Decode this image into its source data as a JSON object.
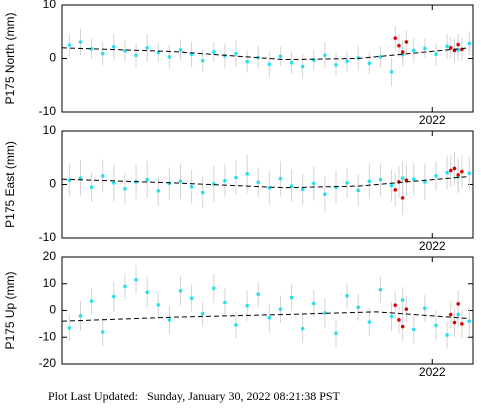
{
  "chart_data": [
    {
      "type": "scatter",
      "ylabel": "P175 North (mm)",
      "xlim": [
        2021.0,
        2022.11
      ],
      "xticks": [
        2022
      ],
      "ylim": [
        -10,
        10
      ],
      "yticks": [
        -10,
        0,
        10
      ],
      "series": [
        {
          "color": "#22e0ee",
          "x": [
            2021.02,
            2021.05,
            2021.08,
            2021.11,
            2021.14,
            2021.17,
            2021.2,
            2021.23,
            2021.26,
            2021.29,
            2021.32,
            2021.35,
            2021.38,
            2021.41,
            2021.44,
            2021.47,
            2021.5,
            2021.53,
            2021.56,
            2021.59,
            2021.62,
            2021.65,
            2021.68,
            2021.71,
            2021.74,
            2021.77,
            2021.8,
            2021.83,
            2021.86,
            2021.89,
            2021.92,
            2021.95,
            2021.98,
            2022.01,
            2022.04,
            2022.07,
            2022.1
          ],
          "values": [
            2.5,
            3.1,
            1.8,
            0.9,
            2.2,
            1.4,
            0.6,
            2.0,
            1.1,
            0.3,
            1.6,
            0.8,
            -0.4,
            1.2,
            0.5,
            0.9,
            -0.6,
            0.2,
            -1.1,
            0.4,
            -0.8,
            -1.5,
            -0.3,
            0.6,
            -1.2,
            -0.5,
            0.1,
            -0.9,
            0.3,
            -2.5,
            0.7,
            1.5,
            1.9,
            0.8,
            2.3,
            1.6,
            2.8
          ],
          "errors": [
            2.2,
            2.5,
            1.9,
            2.1,
            2.4,
            2.0,
            2.3,
            2.6,
            1.8,
            2.2,
            2.0,
            2.4,
            2.1,
            1.9,
            2.3,
            2.5,
            2.0,
            2.2,
            2.4,
            1.8,
            2.1,
            2.3,
            2.0,
            2.5,
            2.2,
            1.9,
            2.4,
            2.1,
            2.0,
            2.6,
            2.2,
            2.3,
            1.9,
            2.1,
            2.4,
            2.0,
            2.2
          ]
        },
        {
          "color": "#e00000",
          "x": [
            2021.9,
            2021.91,
            2021.92,
            2021.93,
            2022.05,
            2022.06,
            2022.07,
            2022.08
          ],
          "values": [
            3.8,
            2.4,
            1.2,
            3.1,
            2.0,
            1.5,
            2.6,
            1.7
          ],
          "errors": [
            2.3,
            2.1,
            2.4,
            2.2,
            2.0,
            2.3,
            2.1,
            2.2
          ]
        },
        {
          "color": "#000000",
          "mode": "dashed-line",
          "x": [
            2021.0,
            2021.3,
            2021.6,
            2021.8,
            2022.1
          ],
          "values": [
            2,
            1.3,
            -0.2,
            0,
            2
          ]
        }
      ]
    },
    {
      "type": "scatter",
      "ylabel": "P175 East (mm)",
      "xlim": [
        2021.0,
        2022.11
      ],
      "xticks": [
        2022
      ],
      "ylim": [
        -10,
        10
      ],
      "yticks": [
        -10,
        0,
        10
      ],
      "series": [
        {
          "color": "#22e0ee",
          "x": [
            2021.02,
            2021.05,
            2021.08,
            2021.11,
            2021.14,
            2021.17,
            2021.2,
            2021.23,
            2021.26,
            2021.29,
            2021.32,
            2021.35,
            2021.38,
            2021.41,
            2021.44,
            2021.47,
            2021.5,
            2021.53,
            2021.56,
            2021.59,
            2021.62,
            2021.65,
            2021.68,
            2021.71,
            2021.74,
            2021.77,
            2021.8,
            2021.83,
            2021.86,
            2021.89,
            2021.92,
            2021.95,
            2021.98,
            2022.01,
            2022.04,
            2022.07,
            2022.1
          ],
          "values": [
            0.8,
            1.2,
            -0.5,
            1.6,
            0.3,
            -0.8,
            0.5,
            0.9,
            -1.2,
            0.2,
            0.6,
            -0.4,
            -1.5,
            0.1,
            0.7,
            1.3,
            2.0,
            0.4,
            -0.6,
            1.1,
            -0.3,
            -0.9,
            0.2,
            -1.8,
            -0.5,
            0.3,
            -1.1,
            0.6,
            0.9,
            -0.2,
            1.2,
            1.0,
            0.5,
            1.6,
            2.2,
            1.4,
            2.1
          ],
          "errors": [
            3.0,
            3.3,
            2.8,
            3.1,
            3.4,
            2.9,
            3.2,
            3.5,
            2.7,
            3.0,
            3.3,
            3.1,
            2.9,
            3.4,
            3.0,
            3.2,
            3.6,
            2.8,
            3.1,
            3.3,
            3.0,
            2.9,
            3.2,
            3.4,
            3.1,
            2.8,
            3.0,
            3.3,
            3.1,
            2.9,
            3.2,
            3.0,
            3.4,
            2.8,
            3.1,
            3.0,
            3.2
          ]
        },
        {
          "color": "#e00000",
          "x": [
            2021.9,
            2021.91,
            2021.92,
            2021.93,
            2022.05,
            2022.06,
            2022.07,
            2022.08
          ],
          "values": [
            -1.0,
            0.5,
            -2.5,
            0.8,
            2.6,
            3.0,
            1.8,
            2.4
          ],
          "errors": [
            3.1,
            3.0,
            3.2,
            2.9,
            3.0,
            3.1,
            3.2,
            3.0
          ]
        },
        {
          "color": "#000000",
          "mode": "dashed-line",
          "x": [
            2021.0,
            2021.3,
            2021.6,
            2021.8,
            2022.1
          ],
          "values": [
            1,
            0.3,
            -0.6,
            -0.3,
            1.5
          ]
        }
      ]
    },
    {
      "type": "scatter",
      "ylabel": "P175 Up (mm)",
      "xlim": [
        2021.0,
        2022.11
      ],
      "xticks": [
        2022
      ],
      "ylim": [
        -20,
        20
      ],
      "yticks": [
        -20,
        -10,
        0,
        10,
        20
      ],
      "series": [
        {
          "color": "#22e0ee",
          "x": [
            2021.02,
            2021.05,
            2021.08,
            2021.11,
            2021.14,
            2021.17,
            2021.2,
            2021.23,
            2021.26,
            2021.29,
            2021.32,
            2021.35,
            2021.38,
            2021.41,
            2021.44,
            2021.47,
            2021.5,
            2021.53,
            2021.56,
            2021.59,
            2021.62,
            2021.65,
            2021.68,
            2021.71,
            2021.74,
            2021.77,
            2021.8,
            2021.83,
            2021.86,
            2021.89,
            2021.92,
            2021.95,
            2021.98,
            2022.01,
            2022.04,
            2022.07,
            2022.1
          ],
          "values": [
            -6.5,
            -2.0,
            3.5,
            -8.0,
            5.2,
            9.0,
            11.5,
            6.8,
            2.1,
            -3.5,
            7.4,
            4.6,
            -1.2,
            8.3,
            3.0,
            -5.4,
            1.8,
            6.1,
            -2.7,
            0.5,
            4.9,
            -6.8,
            2.6,
            -0.9,
            -8.5,
            5.5,
            1.2,
            -4.3,
            7.8,
            -2.2,
            3.9,
            -7.1,
            0.8,
            -5.6,
            -9.2,
            -1.5,
            -4.0
          ],
          "errors": [
            5.0,
            5.5,
            4.8,
            5.2,
            5.6,
            4.9,
            5.3,
            5.8,
            4.7,
            5.1,
            5.4,
            5.0,
            4.9,
            5.5,
            5.2,
            5.0,
            5.7,
            4.8,
            5.3,
            5.1,
            5.0,
            5.4,
            4.9,
            5.6,
            5.2,
            4.8,
            5.1,
            5.3,
            5.0,
            5.5,
            4.9,
            5.2,
            5.0,
            5.4,
            5.1,
            4.8,
            5.3
          ]
        },
        {
          "color": "#e00000",
          "x": [
            2021.9,
            2021.91,
            2021.92,
            2021.93,
            2022.05,
            2022.06,
            2022.07,
            2022.08
          ],
          "values": [
            2.0,
            -3.5,
            -6.0,
            0.5,
            -1.5,
            -4.5,
            2.5,
            -5.0
          ],
          "errors": [
            5.2,
            5.0,
            5.4,
            4.9,
            5.1,
            5.3,
            5.0,
            5.2
          ]
        },
        {
          "color": "#000000",
          "mode": "dashed-line",
          "x": [
            2021.0,
            2021.3,
            2021.6,
            2021.85,
            2022.1
          ],
          "values": [
            -4,
            -2.5,
            -1.5,
            -0.5,
            -3
          ]
        }
      ]
    }
  ],
  "footer": {
    "label": "Plot Last Updated:",
    "value": "Sunday, January 30, 2022 08:21:38 PST"
  }
}
